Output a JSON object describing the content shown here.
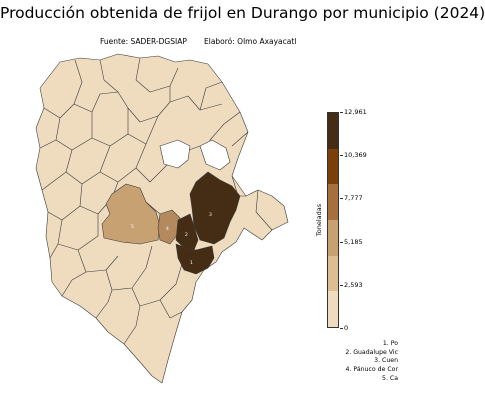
{
  "header": {
    "title": "Producción obtenida de frijol en Durango por municipio (2024)",
    "source": "Fuente: SADER-DGSIAP",
    "author": "Elaboró: Olmo Axayacatl"
  },
  "colorbar": {
    "label": "Toneladas",
    "min": 0,
    "max": 12961,
    "ticks": [
      "0",
      "2,593",
      "5,185",
      "7,777",
      "10,369",
      "12,961"
    ],
    "colors": [
      "#efdcbf",
      "#ddbe93",
      "#c8a172",
      "#a6703e",
      "#7a400c",
      "#452c14"
    ]
  },
  "map": {
    "base_fill": "#efdcbf",
    "no_data_fill": "#ffffff",
    "border_color": "#3a3a3a",
    "highlighted": [
      {
        "number": "1",
        "value_band": "10,369–12,961",
        "fill": "#452c14"
      },
      {
        "number": "2",
        "value_band": "10,369–12,961",
        "fill": "#452c14"
      },
      {
        "number": "3",
        "value_band": "10,369–12,961",
        "fill": "#452c14"
      },
      {
        "number": "4",
        "value_band": "5,185–7,777",
        "fill": "#b5895e"
      },
      {
        "number": "5",
        "value_band": "5,185–7,777",
        "fill": "#c8a172"
      }
    ]
  },
  "legend": {
    "entries": [
      "1. Po",
      "2. Guadalupe Vic",
      "3. Cuen",
      "4. Pánuco de Cor",
      "5. Ca"
    ]
  }
}
